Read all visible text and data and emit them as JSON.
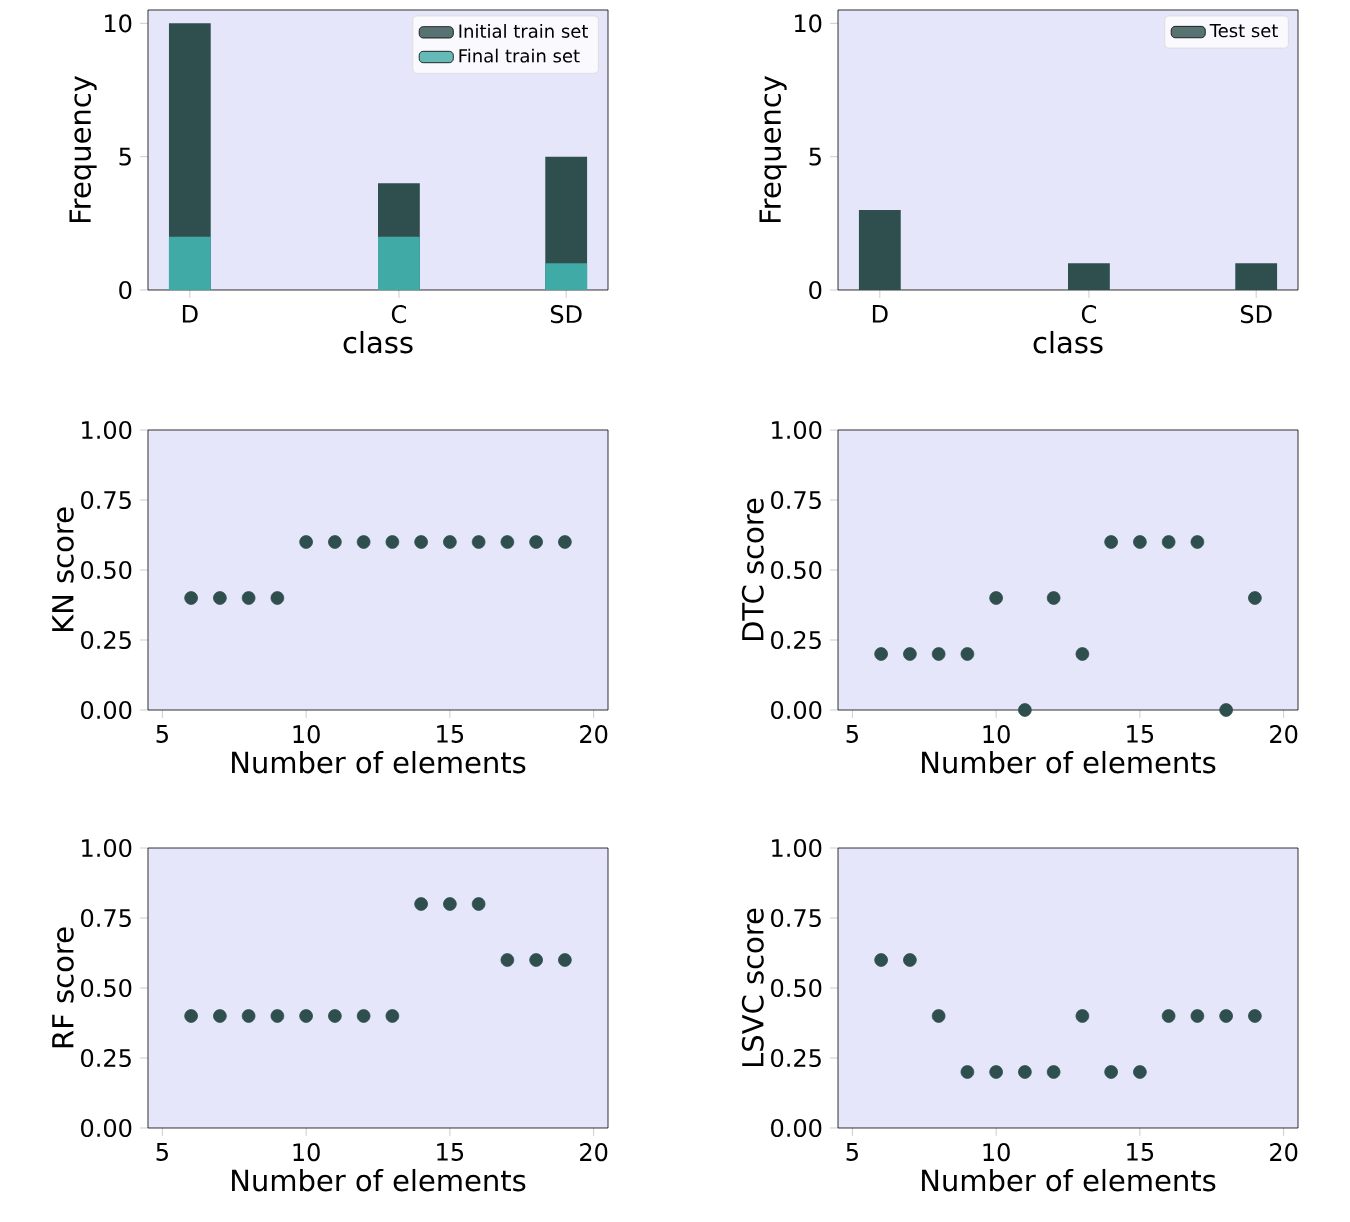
{
  "chart_data": [
    {
      "type": "bar",
      "xlabel": "class",
      "ylabel": "Frequency",
      "categories": [
        "D",
        null,
        null,
        null,
        null,
        "C",
        null,
        null,
        null,
        "SD"
      ],
      "series": [
        {
          "name": "Initial train set",
          "color": "#2f4f4f",
          "values": [
            10,
            0,
            0,
            0,
            0,
            4,
            0,
            0,
            0,
            5
          ]
        },
        {
          "name": "Final train set",
          "color": "#40aaa6",
          "values": [
            2,
            0,
            0,
            0,
            0,
            2,
            0,
            0,
            0,
            1
          ]
        }
      ],
      "ylim": [
        0,
        10.5
      ],
      "yticks": [
        0,
        5,
        10
      ],
      "legend": "top right",
      "grid": false
    },
    {
      "type": "bar",
      "xlabel": "class",
      "ylabel": "Frequency",
      "categories": [
        "D",
        null,
        null,
        null,
        null,
        "C",
        null,
        null,
        null,
        "SD"
      ],
      "series": [
        {
          "name": "Test set",
          "color": "#2f4f4f",
          "values": [
            3,
            0,
            0,
            0,
            0,
            1,
            0,
            0,
            0,
            1
          ]
        }
      ],
      "ylim": [
        0,
        10.5
      ],
      "yticks": [
        0,
        5,
        10
      ],
      "legend": "top right",
      "grid": false
    },
    {
      "type": "scatter",
      "xlabel": "Number of elements",
      "ylabel": "KN score",
      "marker": "circle",
      "x": [
        6,
        7,
        8,
        9,
        10,
        11,
        12,
        13,
        14,
        15,
        16,
        17,
        18,
        19
      ],
      "series": [
        {
          "color": "#2f4f4f",
          "values": [
            0.4,
            0.4,
            0.4,
            0.4,
            0.6,
            0.6,
            0.6,
            0.6,
            0.6,
            0.6,
            0.6,
            0.6,
            0.6,
            0.6
          ]
        }
      ],
      "xlim": [
        4.5,
        20.5
      ],
      "xticks": [
        5,
        10,
        15,
        20
      ],
      "ylim": [
        0,
        1
      ],
      "yticks": [
        {
          "value": 0,
          "label": "0.00"
        },
        {
          "value": 0.25,
          "label": "0.25"
        },
        {
          "value": 0.5,
          "label": "0.50"
        },
        {
          "value": 0.75,
          "label": "0.75"
        },
        {
          "value": 1,
          "label": "1.00"
        }
      ],
      "legend": false,
      "grid": false
    },
    {
      "type": "scatter",
      "xlabel": "Number of elements",
      "ylabel": "DTC score",
      "marker": "circle",
      "x": [
        6,
        7,
        8,
        9,
        10,
        11,
        12,
        13,
        14,
        15,
        16,
        17,
        18,
        19
      ],
      "series": [
        {
          "color": "#2f4f4f",
          "values": [
            0.2,
            0.2,
            0.2,
            0.2,
            0.4,
            0.0,
            0.4,
            0.2,
            0.6,
            0.6,
            0.6,
            0.6,
            0.0,
            0.4
          ]
        }
      ],
      "xlim": [
        4.5,
        20.5
      ],
      "xticks": [
        5,
        10,
        15,
        20
      ],
      "ylim": [
        0,
        1
      ],
      "yticks": [
        {
          "value": 0,
          "label": "0.00"
        },
        {
          "value": 0.25,
          "label": "0.25"
        },
        {
          "value": 0.5,
          "label": "0.50"
        },
        {
          "value": 0.75,
          "label": "0.75"
        },
        {
          "value": 1,
          "label": "1.00"
        }
      ],
      "legend": false,
      "grid": false
    },
    {
      "type": "scatter",
      "xlabel": "Number of elements",
      "ylabel": "RF score",
      "marker": "circle",
      "x": [
        6,
        7,
        8,
        9,
        10,
        11,
        12,
        13,
        14,
        15,
        16,
        17,
        18,
        19
      ],
      "series": [
        {
          "color": "#2f4f4f",
          "values": [
            0.4,
            0.4,
            0.4,
            0.4,
            0.4,
            0.4,
            0.4,
            0.4,
            0.8,
            0.8,
            0.8,
            0.6,
            0.6,
            0.6
          ]
        }
      ],
      "xlim": [
        4.5,
        20.5
      ],
      "xticks": [
        5,
        10,
        15,
        20
      ],
      "ylim": [
        0,
        1
      ],
      "yticks": [
        {
          "value": 0,
          "label": "0.00"
        },
        {
          "value": 0.25,
          "label": "0.25"
        },
        {
          "value": 0.5,
          "label": "0.50"
        },
        {
          "value": 0.75,
          "label": "0.75"
        },
        {
          "value": 1,
          "label": "1.00"
        }
      ],
      "legend": false,
      "grid": false
    },
    {
      "type": "scatter",
      "xlabel": "Number of elements",
      "ylabel": "LSVC score",
      "marker": "circle",
      "x": [
        6,
        7,
        8,
        9,
        10,
        11,
        12,
        13,
        14,
        15,
        16,
        17,
        18,
        19
      ],
      "series": [
        {
          "color": "#2f4f4f",
          "values": [
            0.6,
            0.6,
            0.4,
            0.2,
            0.2,
            0.2,
            0.2,
            0.4,
            0.2,
            0.2,
            0.4,
            0.4,
            0.4,
            0.4
          ]
        }
      ],
      "xlim": [
        4.5,
        20.5
      ],
      "xticks": [
        5,
        10,
        15,
        20
      ],
      "ylim": [
        0,
        1
      ],
      "yticks": [
        {
          "value": 0,
          "label": "0.00"
        },
        {
          "value": 0.25,
          "label": "0.25"
        },
        {
          "value": 0.5,
          "label": "0.50"
        },
        {
          "value": 0.75,
          "label": "0.75"
        },
        {
          "value": 1,
          "label": "1.00"
        }
      ],
      "legend": false,
      "grid": false
    }
  ]
}
